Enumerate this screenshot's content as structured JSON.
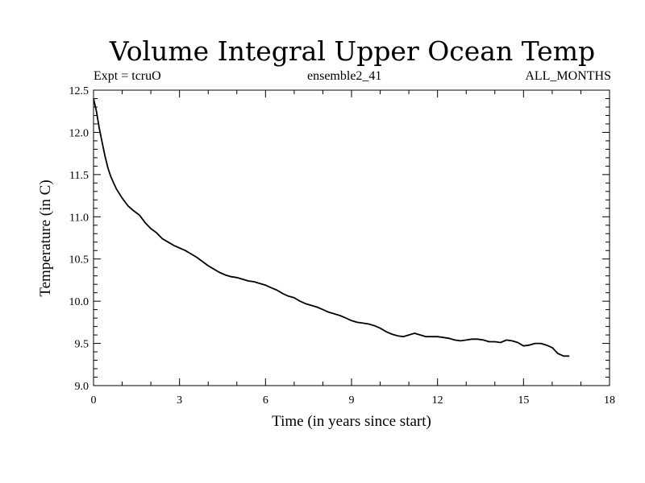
{
  "chart_data": {
    "type": "line",
    "title": "Volume Integral Upper Ocean Temp",
    "subtitle_left": "Expt = tcruO",
    "subtitle_center": "ensemble2_41",
    "subtitle_right": "ALL_MONTHS",
    "xlabel": "Time (in years since start)",
    "ylabel": "Temperature (in C)",
    "xlim": [
      0,
      18
    ],
    "ylim": [
      9.0,
      12.5
    ],
    "x_ticks": [
      0,
      3,
      6,
      9,
      12,
      15,
      18
    ],
    "y_ticks": [
      9.0,
      9.5,
      10.0,
      10.5,
      11.0,
      11.5,
      12.0,
      12.5
    ],
    "x_tick_labels": [
      "0",
      "3",
      "6",
      "9",
      "12",
      "15",
      "18"
    ],
    "y_tick_labels": [
      "9.0",
      "9.5",
      "10.0",
      "10.5",
      "11.0",
      "11.5",
      "12.0",
      "12.5"
    ],
    "grid": false,
    "series": [
      {
        "color": "#000000",
        "x": [
          0,
          0.1,
          0.2,
          0.3,
          0.4,
          0.5,
          0.6,
          0.7,
          0.8,
          1.0,
          1.2,
          1.4,
          1.6,
          1.8,
          2.0,
          2.2,
          2.4,
          2.6,
          2.8,
          3.0,
          3.2,
          3.4,
          3.6,
          3.8,
          4.0,
          4.2,
          4.4,
          4.6,
          4.8,
          5.0,
          5.2,
          5.4,
          5.6,
          5.8,
          6.0,
          6.2,
          6.4,
          6.6,
          6.8,
          7.0,
          7.2,
          7.4,
          7.6,
          7.8,
          8.0,
          8.2,
          8.4,
          8.6,
          8.8,
          9.0,
          9.2,
          9.4,
          9.6,
          9.8,
          10.0,
          10.2,
          10.4,
          10.6,
          10.8,
          11.0,
          11.2,
          11.4,
          11.6,
          11.8,
          12.0,
          12.2,
          12.4,
          12.6,
          12.8,
          13.0,
          13.2,
          13.4,
          13.6,
          13.8,
          14.0,
          14.2,
          14.4,
          14.6,
          14.8,
          15.0,
          15.2,
          15.4,
          15.6,
          15.8,
          16.0,
          16.2,
          16.4,
          16.6
        ],
        "y": [
          12.4,
          12.25,
          12.05,
          11.88,
          11.72,
          11.58,
          11.48,
          11.4,
          11.33,
          11.22,
          11.13,
          11.07,
          11.02,
          10.93,
          10.86,
          10.81,
          10.74,
          10.7,
          10.66,
          10.63,
          10.6,
          10.56,
          10.52,
          10.47,
          10.42,
          10.38,
          10.34,
          10.31,
          10.29,
          10.28,
          10.26,
          10.24,
          10.23,
          10.21,
          10.19,
          10.16,
          10.13,
          10.09,
          10.06,
          10.04,
          10.0,
          9.97,
          9.95,
          9.93,
          9.9,
          9.87,
          9.85,
          9.83,
          9.8,
          9.77,
          9.75,
          9.74,
          9.73,
          9.71,
          9.68,
          9.64,
          9.61,
          9.59,
          9.58,
          9.6,
          9.62,
          9.6,
          9.58,
          9.58,
          9.58,
          9.57,
          9.56,
          9.54,
          9.53,
          9.54,
          9.55,
          9.55,
          9.54,
          9.52,
          9.52,
          9.51,
          9.54,
          9.53,
          9.51,
          9.47,
          9.48,
          9.5,
          9.5,
          9.48,
          9.45,
          9.38,
          9.35,
          9.35
        ]
      }
    ]
  }
}
